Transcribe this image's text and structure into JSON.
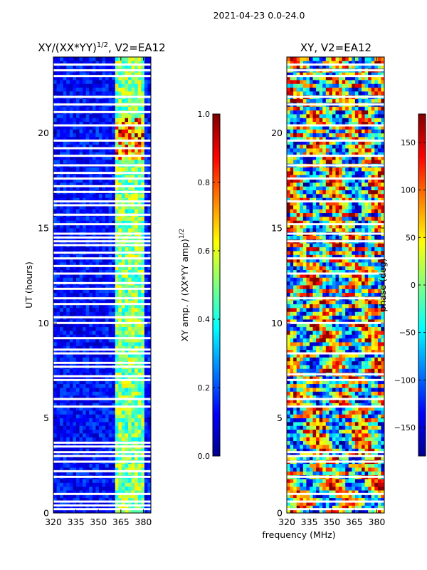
{
  "suptitle": "2021-04-23 0.0-24.0",
  "colors": {
    "jet": [
      "#00008f",
      "#0000ff",
      "#0080ff",
      "#00ffff",
      "#80ff80",
      "#ffff00",
      "#ff8000",
      "#ff0000",
      "#800000"
    ],
    "gap": "#ffffff",
    "axis": "#000000"
  },
  "chart_data": [
    {
      "type": "heatmap",
      "title_main": "XY/(XX*YY)",
      "title_sup": "1/2",
      "title_tail": ", V2=EA12",
      "xlabel": "",
      "ylabel": "UT (hours)",
      "xlim": [
        320,
        385
      ],
      "ylim": [
        0,
        24
      ],
      "xticks": [
        "320",
        "335",
        "350",
        "365",
        "380"
      ],
      "xtick_values": [
        320,
        335,
        350,
        365,
        380
      ],
      "yticks": [
        "0",
        "5",
        "10",
        "15",
        "20"
      ],
      "ytick_values": [
        0,
        5,
        10,
        15,
        20
      ],
      "colorbar": {
        "label_main": "XY amp. / (XX*YY amp)",
        "label_sup": "1/2",
        "ticks": [
          "0.0",
          "0.2",
          "0.4",
          "0.6",
          "0.8",
          "1.0"
        ],
        "tick_values": [
          0.0,
          0.2,
          0.4,
          0.6,
          0.8,
          1.0
        ],
        "range": [
          0.0,
          1.0
        ]
      },
      "bright_band_mhz": [
        362,
        381
      ],
      "gap_hours": [
        0.2,
        0.4,
        0.6,
        1.0,
        1.9,
        2.2,
        2.7,
        3.0,
        3.2,
        3.5,
        3.7,
        5.6,
        6.0,
        7.0,
        7.2,
        7.7,
        7.9,
        8.4,
        8.6,
        9.2,
        10.0,
        10.3,
        11.0,
        11.3,
        11.8,
        12.1,
        12.6,
        13.0,
        13.4,
        13.7,
        14.1,
        14.3,
        14.5,
        14.7,
        15.2,
        15.7,
        16.2,
        16.4,
        16.9,
        17.2,
        17.6,
        17.9,
        18.3,
        18.8,
        19.2,
        19.6,
        20.4,
        21.1,
        21.5,
        21.9,
        23.0,
        23.3,
        23.6
      ]
    },
    {
      "type": "heatmap",
      "title_main": "XY, V2=EA12",
      "xlabel": "frequency (MHz)",
      "ylabel": "",
      "xlim": [
        320,
        385
      ],
      "ylim": [
        0,
        24
      ],
      "xticks": [
        "320",
        "335",
        "350",
        "365",
        "380"
      ],
      "xtick_values": [
        320,
        335,
        350,
        365,
        380
      ],
      "yticks": [
        "0",
        "5",
        "10",
        "15",
        "20"
      ],
      "ytick_values": [
        0,
        5,
        10,
        15,
        20
      ],
      "colorbar": {
        "label_main": "phase (deg)",
        "ticks": [
          "−150",
          "−100",
          "−50",
          "0",
          "50",
          "100",
          "150"
        ],
        "tick_values": [
          -150,
          -100,
          -50,
          0,
          50,
          100,
          150
        ],
        "range": [
          -180,
          180
        ]
      },
      "gap_hours": [
        0.2,
        0.6,
        1.0,
        1.9,
        2.7,
        3.0,
        3.2,
        5.6,
        6.0,
        7.0,
        7.3,
        8.4,
        10.0,
        11.3,
        12.6,
        13.4,
        14.3,
        14.7,
        15.2,
        16.4,
        17.6,
        18.3,
        18.8,
        19.6,
        20.4,
        21.5,
        21.9,
        23.0,
        23.3,
        23.6
      ]
    }
  ]
}
